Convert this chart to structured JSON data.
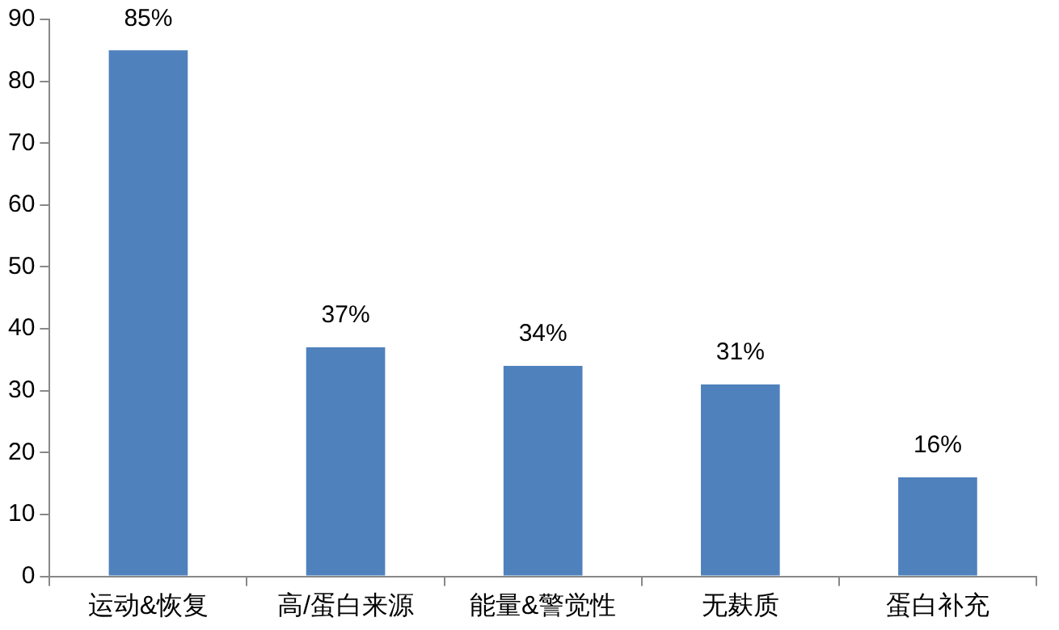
{
  "chart_data": {
    "type": "bar",
    "categories": [
      "运动&恢复",
      "高/蛋白来源",
      "能量&警觉性",
      "无麸质",
      "蛋白补充"
    ],
    "values": [
      85,
      37,
      34,
      31,
      16
    ],
    "value_labels": [
      "85%",
      "37%",
      "34%",
      "31%",
      "16%"
    ],
    "color": "#4f81bd",
    "ylim": [
      0,
      90
    ],
    "yticks": [
      0,
      10,
      20,
      30,
      40,
      50,
      60,
      70,
      80,
      90
    ],
    "grid": false,
    "legend": false
  }
}
